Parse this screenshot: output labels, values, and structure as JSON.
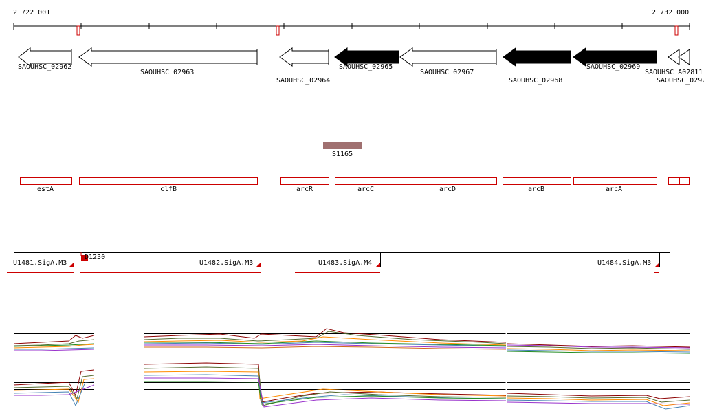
{
  "ruler": {
    "start_label": "2 722 001",
    "end_label": "2 732 000"
  },
  "genes": [
    {
      "id": "SAOUHSC_02962",
      "strand": "-",
      "fill": "white"
    },
    {
      "id": "SAOUHSC_02963",
      "strand": "-",
      "fill": "white"
    },
    {
      "id": "SAOUHSC_02964",
      "strand": "-",
      "fill": "white"
    },
    {
      "id": "SAOUHSC_02965",
      "strand": "+",
      "fill": "black"
    },
    {
      "id": "SAOUHSC_02967",
      "strand": "-",
      "fill": "white"
    },
    {
      "id": "SAOUHSC_02968",
      "strand": "-",
      "fill": "black"
    },
    {
      "id": "SAOUHSC_02969",
      "strand": "-",
      "fill": "black"
    },
    {
      "id": "SAOUHSC_A02811",
      "strand": "-",
      "fill": "white"
    },
    {
      "id": "SAOUHSC_0297",
      "strand": "-",
      "fill": "white"
    }
  ],
  "feature": {
    "label": "S1165",
    "color": "#a07070"
  },
  "operons": [
    {
      "label": "estA"
    },
    {
      "label": "clfB"
    },
    {
      "label": "arcR"
    },
    {
      "label": "arcC"
    },
    {
      "label": "arcD"
    },
    {
      "label": "arcB"
    },
    {
      "label": "arcA"
    }
  ],
  "transcription_units": [
    {
      "label": "U1481.SigA.M3"
    },
    {
      "label": "U1482.SigA.M3"
    },
    {
      "label": "U1483.SigA.M4"
    },
    {
      "label": "U1484.SigA.M3"
    }
  ],
  "dna_feature": {
    "label": "D1230"
  },
  "colors": {
    "accent_red": "#cc0000",
    "gene_outline": "#000000",
    "feature_fill": "#a07070"
  }
}
